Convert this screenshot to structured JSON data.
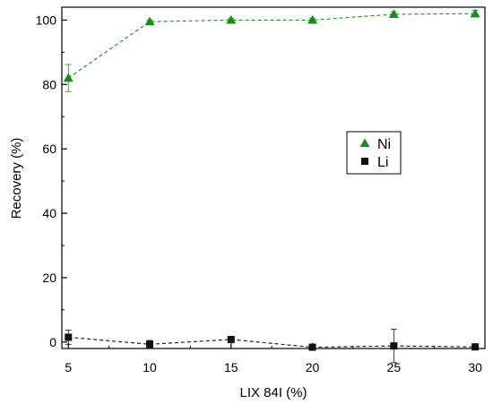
{
  "chart_data": {
    "type": "line",
    "xlabel": "LIX 84I (%)",
    "ylabel": "Recovery (%)",
    "xlim": [
      4.6,
      30.6
    ],
    "ylim": [
      -2,
      104
    ],
    "xticks": [
      5,
      10,
      15,
      20,
      25,
      30
    ],
    "yticks": [
      0,
      20,
      40,
      60,
      80,
      100
    ],
    "x": [
      5,
      10,
      15,
      20,
      25,
      30
    ],
    "grid": false,
    "legend_position": "center-right",
    "series": [
      {
        "name": "Ni",
        "color": "#1a8a1a",
        "marker": "triangle",
        "line_style": "dashed",
        "values": [
          82,
          99.5,
          100,
          100,
          101.8,
          102
        ],
        "error": [
          4.2,
          0.5,
          0.5,
          0.6,
          0.8,
          1.0
        ]
      },
      {
        "name": "Li",
        "color": "#111111",
        "marker": "square",
        "line_style": "dashed",
        "values": [
          1.5,
          -0.7,
          0.8,
          -1.6,
          -1.2,
          -1.5
        ],
        "error": [
          2.2,
          1.2,
          0.6,
          0.3,
          5.2,
          0.4
        ]
      }
    ]
  }
}
